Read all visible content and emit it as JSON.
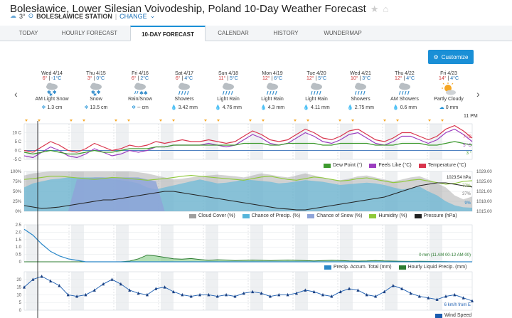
{
  "header": {
    "title": "Bolesławice, Lower Silesian Voivodeship, Poland 10-Day Weather Forecast",
    "current_temp": "3°",
    "station": "BOLESŁAWICE STATION",
    "separator": "|",
    "change_label": "CHANGE"
  },
  "tabs": [
    {
      "label": "TODAY"
    },
    {
      "label": "HOURLY FORECAST"
    },
    {
      "label": "10-DAY FORECAST"
    },
    {
      "label": "CALENDAR"
    },
    {
      "label": "HISTORY"
    },
    {
      "label": "WUNDERMAP"
    }
  ],
  "customize_label": "Customize",
  "time_label": "11 PM",
  "days": [
    {
      "date": "Wed 4/14",
      "hi": "6°",
      "sep": "|",
      "lo": "-1°C",
      "condition": "AM Light Snow",
      "amount": "1.3 cm",
      "icon": "snow"
    },
    {
      "date": "Thu 4/15",
      "hi": "3°",
      "sep": "|",
      "lo": "0°C",
      "condition": "Snow",
      "amount": "13.5 cm",
      "icon": "snow"
    },
    {
      "date": "Fri 4/16",
      "hi": "6°",
      "sep": "|",
      "lo": "2°C",
      "condition": "Rain/Snow",
      "amount": "-- cm",
      "icon": "rain-snow"
    },
    {
      "date": "Sat 4/17",
      "hi": "6°",
      "sep": "|",
      "lo": "4°C",
      "condition": "Showers",
      "amount": "3.42 mm",
      "icon": "rain"
    },
    {
      "date": "Sun 4/18",
      "hi": "11°",
      "sep": "|",
      "lo": "5°C",
      "condition": "Light Rain",
      "amount": "4.76 mm",
      "icon": "rain"
    },
    {
      "date": "Mon 4/19",
      "hi": "12°",
      "sep": "|",
      "lo": "6°C",
      "condition": "Light Rain",
      "amount": "4.3 mm",
      "icon": "rain"
    },
    {
      "date": "Tue 4/20",
      "hi": "12°",
      "sep": "|",
      "lo": "5°C",
      "condition": "Light Rain",
      "amount": "4.11 mm",
      "icon": "rain"
    },
    {
      "date": "Wed 4/21",
      "hi": "10°",
      "sep": "|",
      "lo": "3°C",
      "condition": "Showers",
      "amount": "2.75 mm",
      "icon": "rain"
    },
    {
      "date": "Thu 4/22",
      "hi": "12°",
      "sep": "|",
      "lo": "4°C",
      "condition": "AM Showers",
      "amount": "0.6 mm",
      "icon": "rain"
    },
    {
      "date": "Fri 4/23",
      "hi": "14°",
      "sep": "|",
      "lo": "4°C",
      "condition": "Partly Cloudy",
      "amount": "0 mm",
      "icon": "partly-cloudy"
    }
  ],
  "chart_data": [
    {
      "type": "line",
      "title": "Temperature",
      "y_ticks": [
        "10 C",
        "5 C",
        "0 C",
        "-5 C"
      ],
      "ylim": [
        -5,
        15
      ],
      "current_labels": [
        "7 °C",
        "5 °C",
        "3 °"
      ],
      "series": [
        {
          "name": "Temperature (°C)",
          "color": "#d9344c",
          "values": [
            0,
            -1,
            2,
            5,
            3,
            0,
            -1,
            1,
            4,
            2,
            0,
            1,
            3,
            2,
            3,
            5,
            4,
            5,
            6,
            5,
            5,
            6,
            5,
            4,
            5,
            8,
            11,
            9,
            6,
            5,
            6,
            9,
            12,
            10,
            7,
            6,
            8,
            11,
            12,
            9,
            6,
            5,
            7,
            10,
            10,
            8,
            6,
            8,
            12,
            14,
            11,
            7
          ]
        },
        {
          "name": "Feels Like (°C)",
          "color": "#9b3dbf",
          "values": [
            -3,
            -4,
            -1,
            2,
            0,
            -3,
            -4,
            -2,
            1,
            -1,
            -3,
            -2,
            0,
            -1,
            0,
            2,
            2,
            3,
            3,
            3,
            3,
            4,
            3,
            2,
            3,
            6,
            9,
            7,
            4,
            3,
            4,
            7,
            10,
            8,
            5,
            4,
            6,
            9,
            10,
            7,
            4,
            3,
            5,
            8,
            8,
            6,
            4,
            6,
            10,
            12,
            9,
            5
          ]
        },
        {
          "name": "Dew Point (°)",
          "color": "#3d9a2e",
          "values": [
            -1,
            -2,
            -1,
            0,
            -1,
            -2,
            -2,
            -1,
            0,
            -1,
            -1,
            0,
            1,
            1,
            1,
            2,
            2,
            3,
            3,
            3,
            3,
            3,
            3,
            3,
            3,
            4,
            4,
            4,
            3,
            3,
            4,
            4,
            4,
            4,
            3,
            3,
            4,
            4,
            4,
            4,
            3,
            3,
            3,
            4,
            4,
            4,
            3,
            3,
            4,
            5,
            4,
            3
          ]
        }
      ],
      "legend": [
        "Dew Point (°)",
        "Feels Like (°C)",
        "Temperature (°C)"
      ]
    },
    {
      "type": "area",
      "title": "Cloud cover, precipitation chance, humidity, pressure",
      "y_ticks_left": [
        "100%",
        "75%",
        "50%",
        "25%",
        "0%"
      ],
      "y_ticks_right": [
        "1029.00",
        "1025.00",
        "1021.00",
        "1018.00",
        "1015.00"
      ],
      "current_labels": [
        "1023.54 hPa",
        "77%",
        "37%",
        "9%"
      ],
      "series": [
        {
          "name": "Cloud Cover (%)",
          "color": "#9e9e9e",
          "values": [
            90,
            95,
            98,
            100,
            100,
            100,
            100,
            100,
            100,
            100,
            100,
            100,
            100,
            98,
            95,
            90,
            85,
            80,
            82,
            85,
            88,
            90,
            92,
            90,
            88,
            85,
            90,
            95,
            92,
            88,
            85,
            90,
            95,
            90,
            85,
            80,
            78,
            82,
            88,
            90,
            85,
            80,
            75,
            80,
            85,
            88,
            80,
            70,
            60,
            40,
            30,
            37
          ]
        },
        {
          "name": "Chance of Precip. (%)",
          "color": "#56b5da",
          "values": [
            60,
            70,
            75,
            80,
            82,
            85,
            85,
            85,
            85,
            85,
            80,
            78,
            75,
            70,
            60,
            55,
            60,
            65,
            70,
            75,
            80,
            75,
            70,
            72,
            75,
            80,
            78,
            76,
            74,
            70,
            72,
            75,
            78,
            76,
            74,
            70,
            66,
            68,
            70,
            72,
            70,
            66,
            60,
            55,
            58,
            62,
            50,
            40,
            25,
            15,
            10,
            9
          ]
        },
        {
          "name": "Chance of Snow (%)",
          "color": "#8ea4d8",
          "values": [
            0,
            0,
            0,
            0,
            0,
            0,
            80,
            82,
            85,
            85,
            85,
            85,
            85,
            85,
            80,
            75,
            0,
            0,
            0,
            0,
            0,
            0,
            0,
            0,
            0,
            0,
            0,
            0,
            0,
            0,
            0,
            0,
            0,
            0,
            0,
            0,
            0,
            0,
            0,
            0,
            0,
            0,
            0,
            0,
            0,
            0,
            0,
            0,
            0,
            0,
            0,
            0
          ]
        },
        {
          "name": "Humidity (%)",
          "color": "#8fc93a",
          "values": [
            80,
            82,
            85,
            88,
            88,
            86,
            84,
            82,
            80,
            82,
            85,
            84,
            82,
            80,
            78,
            80,
            82,
            85,
            88,
            90,
            88,
            86,
            84,
            82,
            80,
            78,
            82,
            86,
            88,
            84,
            80,
            78,
            82,
            86,
            84,
            80,
            76,
            78,
            82,
            84,
            80,
            76,
            72,
            74,
            78,
            80,
            76,
            72,
            68,
            70,
            75,
            77
          ]
        },
        {
          "name": "Pressure (hPa)",
          "color": "#222222",
          "values": [
            1017,
            1016.5,
            1016,
            1016.2,
            1016.5,
            1017,
            1017.5,
            1018,
            1018.5,
            1019,
            1019,
            1019.5,
            1020,
            1020.5,
            1021,
            1021.5,
            1022,
            1022,
            1021.5,
            1021,
            1020.5,
            1020,
            1019.5,
            1019,
            1018.5,
            1018,
            1017.5,
            1017,
            1016.5,
            1016,
            1015.8,
            1015.5,
            1015.5,
            1016,
            1016.5,
            1017,
            1017.5,
            1018,
            1018.5,
            1019,
            1019.5,
            1020,
            1021,
            1022,
            1023,
            1024,
            1024.5,
            1025,
            1025,
            1024.5,
            1024,
            1023.54
          ]
        }
      ],
      "legend": [
        "Cloud Cover (%)",
        "Chance of Precip. (%)",
        "Chance of Snow (%)",
        "Humidity (%)",
        "Pressure (hPa)"
      ]
    },
    {
      "type": "area",
      "title": "Precipitation",
      "y_ticks": [
        "2.5",
        "2.0",
        "1.5",
        "1.0",
        "0.5",
        "0"
      ],
      "ylim": [
        0,
        2.5
      ],
      "current_label": "0 mm (11 AM 00-12 AM 00)",
      "series": [
        {
          "name": "Precip. Accum. Total (mm)",
          "color": "#2a87c8",
          "values": [
            2.2,
            1.8,
            1.2,
            0.7,
            0.4,
            0.2,
            0.1,
            0,
            0,
            0,
            0,
            0,
            0,
            0,
            0,
            0,
            0,
            0,
            0,
            0,
            0,
            0,
            0,
            0,
            0,
            0,
            0,
            0,
            0,
            0,
            0,
            0,
            0,
            0,
            0,
            0,
            0,
            0,
            0,
            0,
            0,
            0,
            0,
            0,
            0,
            0,
            0,
            0,
            0,
            0,
            0,
            0
          ]
        },
        {
          "name": "Hourly Liquid Precip. (mm)",
          "color": "#2e7d32",
          "values": [
            0,
            0,
            0,
            0,
            0,
            0,
            0,
            0,
            0,
            0,
            0,
            0,
            0.05,
            0.2,
            0.45,
            0.4,
            0.3,
            0.2,
            0.18,
            0.22,
            0.16,
            0.1,
            0.14,
            0.12,
            0.08,
            0.1,
            0.12,
            0.1,
            0.08,
            0.1,
            0.12,
            0.1,
            0.08,
            0.06,
            0.08,
            0.1,
            0.08,
            0.06,
            0.05,
            0.06,
            0.08,
            0.06,
            0.05,
            0.04,
            0.03,
            0.04,
            0.03,
            0.02,
            0.01,
            0,
            0,
            0
          ]
        }
      ],
      "legend": [
        "Precip. Accum. Total (mm)",
        "Hourly Liquid Precip. (mm)"
      ]
    },
    {
      "type": "line",
      "title": "Wind",
      "y_ticks": [
        "20",
        "15",
        "10",
        "5",
        "0"
      ],
      "ylim": [
        0,
        25
      ],
      "current_label": "6 km/h from E",
      "series": [
        {
          "name": "Wind Speed",
          "color": "#1a5cb0",
          "values": [
            15,
            20,
            22,
            19,
            16,
            10,
            9,
            10,
            13,
            17,
            20,
            17,
            13,
            11,
            10,
            14,
            15,
            12,
            10,
            9,
            10,
            10,
            9,
            10,
            9,
            11,
            12,
            11,
            9,
            10,
            10,
            11,
            13,
            12,
            10,
            9,
            12,
            14,
            13,
            10,
            9,
            12,
            16,
            14,
            11,
            9,
            8,
            7,
            9,
            10,
            8,
            6
          ]
        }
      ],
      "legend": [
        "Wind Speed"
      ]
    }
  ]
}
